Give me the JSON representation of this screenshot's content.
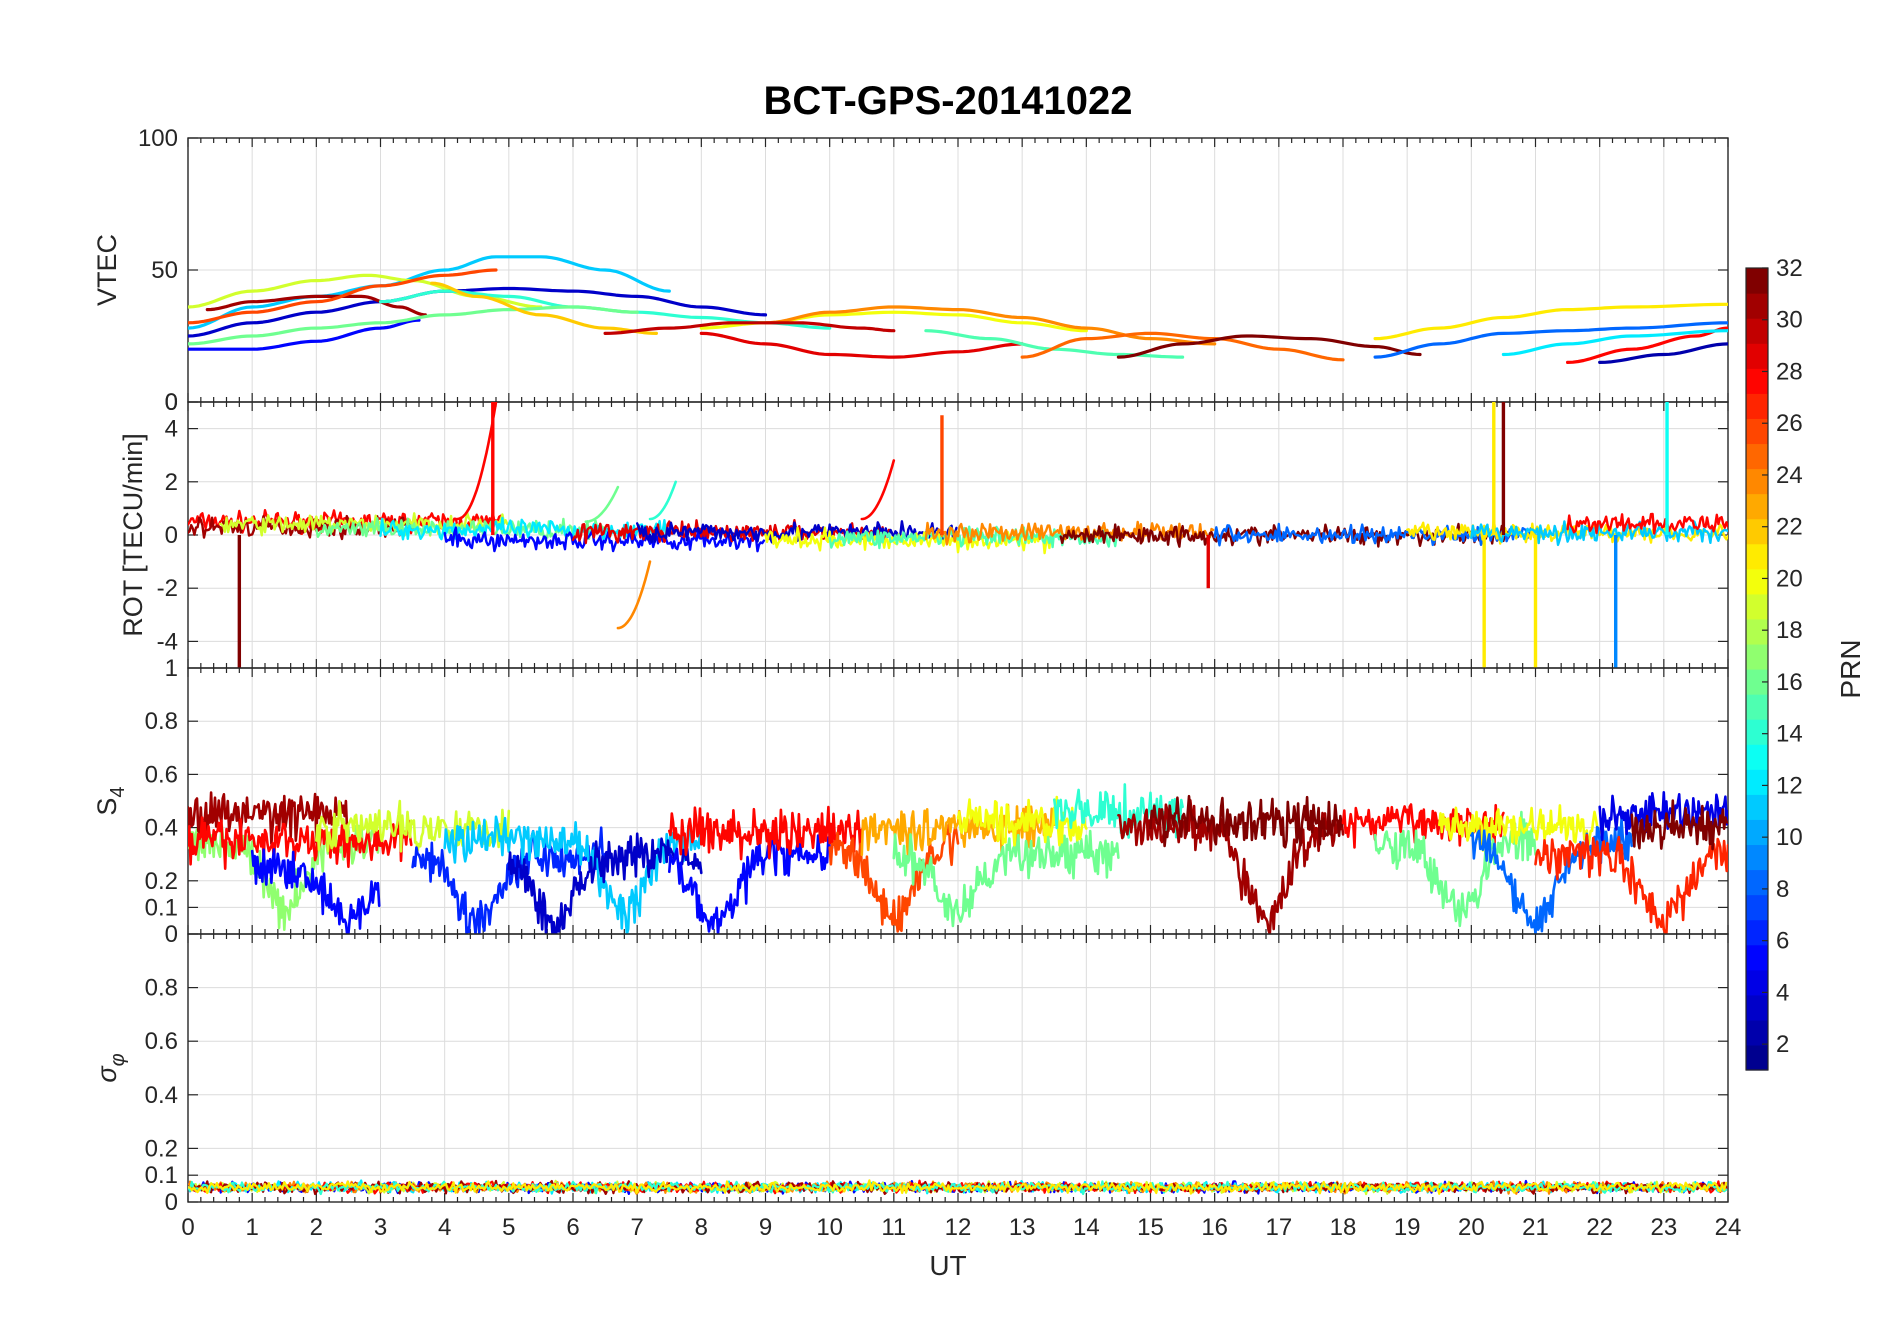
{
  "figure": {
    "title": "BCT-GPS-20141022",
    "xlabel": "UT",
    "colorbar_label": "PRN"
  },
  "colors": {
    "colormap": [
      "#00008f",
      "#0000ff",
      "#0080ff",
      "#00ffff",
      "#80ff80",
      "#ffff00",
      "#ff8000",
      "#ff0000",
      "#800000"
    ]
  },
  "chart_data": [
    {
      "type": "line",
      "name": "vtec-panel",
      "ylabel": "VTEC",
      "xlim": [
        0,
        24
      ],
      "ylim": [
        0,
        100
      ],
      "x_ticks": [
        0,
        1,
        2,
        3,
        4,
        5,
        6,
        7,
        8,
        9,
        10,
        11,
        12,
        13,
        14,
        15,
        16,
        17,
        18,
        19,
        20,
        21,
        22,
        23,
        24
      ],
      "y_ticks": [
        0,
        50,
        100
      ],
      "y_tick_labels": [
        "0",
        "50",
        "100"
      ],
      "grid": true,
      "series": [
        {
          "prn": 11,
          "points": [
            [
              0,
              28
            ],
            [
              1,
              36
            ],
            [
              2,
              40
            ],
            [
              3,
              44
            ],
            [
              4,
              50
            ],
            [
              4.8,
              55
            ],
            [
              5.5,
              55
            ],
            [
              6.5,
              50
            ],
            [
              7.5,
              42
            ]
          ]
        },
        {
          "prn": 19,
          "points": [
            [
              0,
              36
            ],
            [
              1,
              42
            ],
            [
              2,
              46
            ],
            [
              2.8,
              48
            ],
            [
              3.5,
              46
            ],
            [
              4.5,
              40
            ],
            [
              5.5,
              36
            ]
          ]
        },
        {
          "prn": 3,
          "points": [
            [
              0,
              25
            ],
            [
              1,
              30
            ],
            [
              2,
              34
            ],
            [
              3,
              38
            ],
            [
              4,
              42
            ],
            [
              5,
              43
            ],
            [
              6,
              42
            ],
            [
              7,
              40
            ],
            [
              8,
              36
            ],
            [
              9,
              33
            ]
          ]
        },
        {
          "prn": 31,
          "points": [
            [
              0.3,
              35
            ],
            [
              1,
              38
            ],
            [
              2,
              40
            ],
            [
              2.7,
              40
            ],
            [
              3.3,
              36
            ],
            [
              3.7,
              33
            ]
          ]
        },
        {
          "prn": 5,
          "points": [
            [
              0,
              20
            ],
            [
              1,
              20
            ],
            [
              2,
              23
            ],
            [
              3,
              28
            ],
            [
              3.6,
              31
            ]
          ]
        },
        {
          "prn": 26,
          "points": [
            [
              0,
              30
            ],
            [
              1,
              34
            ],
            [
              2,
              38
            ],
            [
              3,
              44
            ],
            [
              4,
              48
            ],
            [
              4.8,
              50
            ]
          ]
        },
        {
          "prn": 14,
          "points": [
            [
              3,
              38
            ],
            [
              4,
              42
            ],
            [
              5,
              40
            ],
            [
              6,
              36
            ],
            [
              7,
              34
            ],
            [
              8,
              32
            ],
            [
              9,
              30
            ],
            [
              10,
              28
            ]
          ]
        },
        {
          "prn": 16,
          "points": [
            [
              0,
              22
            ],
            [
              1,
              25
            ],
            [
              2,
              28
            ],
            [
              3,
              30
            ],
            [
              4,
              33
            ],
            [
              5,
              35
            ],
            [
              6,
              36
            ],
            [
              7,
              34
            ]
          ]
        },
        {
          "prn": 22,
          "points": [
            [
              3.8,
              45
            ],
            [
              4.5,
              40
            ],
            [
              5.5,
              33
            ],
            [
              6.5,
              28
            ],
            [
              7.3,
              26
            ]
          ]
        },
        {
          "prn": 20,
          "points": [
            [
              8,
              28
            ],
            [
              9,
              30
            ],
            [
              10,
              33
            ],
            [
              11,
              34
            ],
            [
              12,
              33
            ],
            [
              13,
              30
            ],
            [
              14,
              27
            ]
          ]
        },
        {
          "prn": 24,
          "points": [
            [
              9,
              30
            ],
            [
              10,
              34
            ],
            [
              11,
              36
            ],
            [
              12,
              35
            ],
            [
              13,
              32
            ],
            [
              14,
              28
            ],
            [
              15,
              24
            ],
            [
              16,
              22
            ]
          ]
        },
        {
          "prn": 30,
          "points": [
            [
              6.5,
              26
            ],
            [
              7.5,
              28
            ],
            [
              8.5,
              30
            ],
            [
              9.5,
              30
            ],
            [
              10.5,
              28
            ],
            [
              11,
              27
            ]
          ]
        },
        {
          "prn": 29,
          "points": [
            [
              8,
              26
            ],
            [
              9,
              22
            ],
            [
              10,
              18
            ],
            [
              11,
              17
            ],
            [
              12,
              19
            ],
            [
              13,
              22
            ]
          ]
        },
        {
          "prn": 15,
          "points": [
            [
              11.5,
              27
            ],
            [
              12.5,
              24
            ],
            [
              13.5,
              20
            ],
            [
              14.5,
              18
            ],
            [
              15.5,
              17
            ]
          ]
        },
        {
          "prn": 25,
          "points": [
            [
              13,
              17
            ],
            [
              14,
              24
            ],
            [
              15,
              26
            ],
            [
              16,
              24
            ],
            [
              17,
              20
            ],
            [
              18,
              16
            ]
          ]
        },
        {
          "prn": 32,
          "points": [
            [
              14.5,
              17
            ],
            [
              15.5,
              22
            ],
            [
              16.5,
              25
            ],
            [
              17.5,
              24
            ],
            [
              18.5,
              21
            ],
            [
              19.2,
              18
            ]
          ]
        },
        {
          "prn": 21,
          "points": [
            [
              18.5,
              24
            ],
            [
              19.5,
              28
            ],
            [
              20.5,
              32
            ],
            [
              21.5,
              35
            ],
            [
              22.5,
              36
            ],
            [
              24,
              37
            ]
          ]
        },
        {
          "prn": 8,
          "points": [
            [
              18.5,
              17
            ],
            [
              19.5,
              22
            ],
            [
              20.5,
              26
            ],
            [
              21.5,
              27
            ],
            [
              22.5,
              28
            ],
            [
              24,
              30
            ]
          ]
        },
        {
          "prn": 28,
          "points": [
            [
              21.5,
              15
            ],
            [
              22.5,
              20
            ],
            [
              23.5,
              25
            ],
            [
              24,
              28
            ]
          ]
        },
        {
          "prn": 2,
          "points": [
            [
              22,
              15
            ],
            [
              23,
              18
            ],
            [
              24,
              22
            ]
          ]
        },
        {
          "prn": 12,
          "points": [
            [
              20.5,
              18
            ],
            [
              21.5,
              22
            ],
            [
              22.5,
              25
            ],
            [
              24,
              27
            ]
          ]
        }
      ]
    },
    {
      "type": "line",
      "name": "rot-panel",
      "ylabel": "ROT [TECU/min]",
      "xlim": [
        0,
        24
      ],
      "ylim": [
        -5,
        5
      ],
      "x_ticks": [
        0,
        1,
        2,
        3,
        4,
        5,
        6,
        7,
        8,
        9,
        10,
        11,
        12,
        13,
        14,
        15,
        16,
        17,
        18,
        19,
        20,
        21,
        22,
        23,
        24
      ],
      "y_ticks": [
        -4,
        -2,
        0,
        2,
        4
      ],
      "y_tick_labels": [
        "-4",
        "-2",
        "0",
        "2",
        "4"
      ],
      "top_tick_label": "0",
      "bottom_tick_label": "1",
      "grid": true,
      "spikes": [
        {
          "x": 0.8,
          "y": -5,
          "prn": 32
        },
        {
          "x": 4.75,
          "y": 5,
          "prn": 28
        },
        {
          "x": 11.75,
          "y": 4.5,
          "prn": 26
        },
        {
          "x": 15.9,
          "y": -2,
          "prn": 29
        },
        {
          "x": 20.2,
          "y": -5,
          "prn": 21
        },
        {
          "x": 20.35,
          "y": 5,
          "prn": 21
        },
        {
          "x": 20.5,
          "y": 5,
          "prn": 32
        },
        {
          "x": 21.0,
          "y": -5,
          "prn": 21
        },
        {
          "x": 22.25,
          "y": -5,
          "prn": 9
        },
        {
          "x": 23.05,
          "y": 5,
          "prn": 13
        }
      ]
    },
    {
      "type": "line",
      "name": "s4-panel",
      "ylabel": "S4",
      "xlim": [
        0,
        24
      ],
      "ylim": [
        0,
        1
      ],
      "x_ticks": [
        0,
        1,
        2,
        3,
        4,
        5,
        6,
        7,
        8,
        9,
        10,
        11,
        12,
        13,
        14,
        15,
        16,
        17,
        18,
        19,
        20,
        21,
        22,
        23,
        24
      ],
      "y_ticks": [
        0,
        0.1,
        0.2,
        0.4,
        0.6,
        0.8
      ],
      "y_tick_labels": [
        "0",
        "0.1",
        "0.2",
        "0.4",
        "0.6",
        "0.8"
      ],
      "grid": true
    },
    {
      "type": "line",
      "name": "sigma-phi-panel",
      "ylabel": "σφ",
      "xlim": [
        0,
        24
      ],
      "ylim": [
        0,
        1
      ],
      "x_ticks": [
        0,
        1,
        2,
        3,
        4,
        5,
        6,
        7,
        8,
        9,
        10,
        11,
        12,
        13,
        14,
        15,
        16,
        17,
        18,
        19,
        20,
        21,
        22,
        23,
        24
      ],
      "y_ticks": [
        0,
        0.1,
        0.2,
        0.4,
        0.6,
        0.8
      ],
      "y_tick_labels": [
        "0",
        "0.1",
        "0.2",
        "0.4",
        "0.6",
        "0.8"
      ],
      "grid": true
    },
    {
      "type": "heatmap",
      "name": "prn-colorbar",
      "label": "PRN",
      "range": [
        1,
        32
      ],
      "ticks": [
        2,
        4,
        6,
        8,
        10,
        12,
        14,
        16,
        18,
        20,
        22,
        24,
        26,
        28,
        30,
        32
      ]
    }
  ]
}
